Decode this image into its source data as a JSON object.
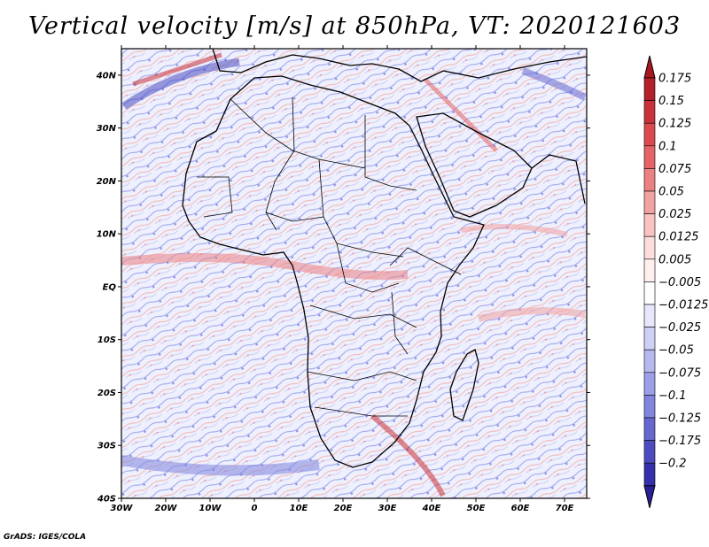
{
  "title": "Vertical velocity [m/s] at 850hPa, VT: 2020121603",
  "credit": "GrADS: IGES/COLA",
  "map": {
    "extent": {
      "lon_min": -30,
      "lon_max": 75,
      "lat_min": -40,
      "lat_max": 45
    },
    "lat_ticks": [
      {
        "lat": 40,
        "label": "40N"
      },
      {
        "lat": 30,
        "label": "30N"
      },
      {
        "lat": 20,
        "label": "20N"
      },
      {
        "lat": 10,
        "label": "10N"
      },
      {
        "lat": 0,
        "label": "EQ"
      },
      {
        "lat": -10,
        "label": "10S"
      },
      {
        "lat": -20,
        "label": "20S"
      },
      {
        "lat": -30,
        "label": "30S"
      },
      {
        "lat": -40,
        "label": "40S"
      }
    ],
    "lon_ticks": [
      {
        "lon": -30,
        "label": "30W"
      },
      {
        "lon": -20,
        "label": "20W"
      },
      {
        "lon": -10,
        "label": "10W"
      },
      {
        "lon": 0,
        "label": "0"
      },
      {
        "lon": 10,
        "label": "10E"
      },
      {
        "lon": 20,
        "label": "20E"
      },
      {
        "lon": 30,
        "label": "30E"
      },
      {
        "lon": 40,
        "label": "40E"
      },
      {
        "lon": 50,
        "label": "50E"
      },
      {
        "lon": 60,
        "label": "60E"
      },
      {
        "lon": 70,
        "label": "70E"
      }
    ]
  },
  "colorbar": {
    "levels": [
      {
        "value": "0.175",
        "color": "#b2202a"
      },
      {
        "value": "0.15",
        "color": "#c8323a"
      },
      {
        "value": "0.125",
        "color": "#da4a4e"
      },
      {
        "value": "0.1",
        "color": "#e46366"
      },
      {
        "value": "0.075",
        "color": "#ec8184"
      },
      {
        "value": "0.05",
        "color": "#f3a2a2"
      },
      {
        "value": "0.025",
        "color": "#f8c3c1"
      },
      {
        "value": "0.0125",
        "color": "#fbdedc"
      },
      {
        "value": "0.005",
        "color": "#fdf0ee"
      },
      {
        "value": "-0.005",
        "color": "#ffffff"
      },
      {
        "value": "-0.0125",
        "color": "#e7e7fb"
      },
      {
        "value": "-0.025",
        "color": "#cfd0f6"
      },
      {
        "value": "-0.05",
        "color": "#b6b8ef"
      },
      {
        "value": "-0.075",
        "color": "#9c9fe8"
      },
      {
        "value": "-0.1",
        "color": "#8185dd"
      },
      {
        "value": "-0.125",
        "color": "#6668d0"
      },
      {
        "value": "-0.175",
        "color": "#4c4cc0"
      },
      {
        "value": "-0.2",
        "color": "#3431ab"
      }
    ],
    "end_colors": {
      "top": "#a8181e",
      "bottom": "#2a2095"
    }
  }
}
